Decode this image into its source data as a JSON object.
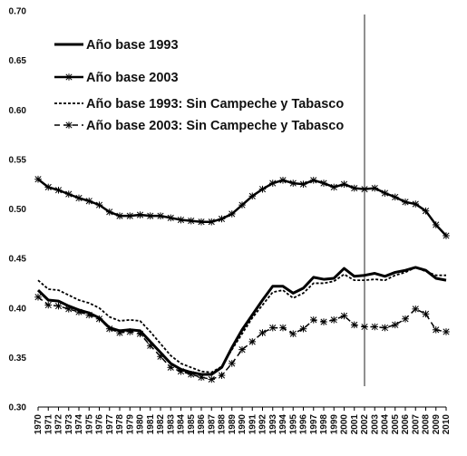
{
  "chart_data": {
    "type": "line",
    "title": "",
    "xlabel": "",
    "ylabel": "",
    "ylim": [
      0.3,
      0.7
    ],
    "yticks": [
      "0.30",
      "0.35",
      "0.40",
      "0.45",
      "0.50",
      "0.55",
      "0.60",
      "0.65",
      "0.70"
    ],
    "grid": false,
    "legend_position": "top-left",
    "reference_line_x": 2002,
    "x": [
      1970,
      1971,
      1972,
      1973,
      1974,
      1975,
      1976,
      1977,
      1978,
      1979,
      1980,
      1981,
      1982,
      1983,
      1984,
      1985,
      1986,
      1987,
      1988,
      1989,
      1990,
      1991,
      1992,
      1993,
      1994,
      1995,
      1996,
      1997,
      1998,
      1999,
      2000,
      2001,
      2002,
      2003,
      2004,
      2005,
      2006,
      2007,
      2008,
      2009,
      2010
    ],
    "x_labels": [
      "1970",
      "1971",
      "1972",
      "1973",
      "1974",
      "1975",
      "1976",
      "1977",
      "1978",
      "1979",
      "1980",
      "1981",
      "1982",
      "1983",
      "1984",
      "1985",
      "1986",
      "1987",
      "1988",
      "1989",
      "1990",
      "1991",
      "1992",
      "1993",
      "1994",
      "1995",
      "1996",
      "1997",
      "1998",
      "1999",
      "2000",
      "2001",
      "2002",
      "2003",
      "2004",
      "2005",
      "2006",
      "2007",
      "2008",
      "2009",
      "2010"
    ],
    "series": [
      {
        "name": "Año base 1993",
        "style": "solid",
        "color": "#000000",
        "values": [
          0.418,
          0.408,
          0.407,
          0.402,
          0.398,
          0.395,
          0.39,
          0.38,
          0.377,
          0.378,
          0.377,
          0.366,
          0.355,
          0.344,
          0.338,
          0.335,
          0.333,
          0.333,
          0.34,
          0.36,
          0.378,
          0.393,
          0.408,
          0.422,
          0.422,
          0.415,
          0.42,
          0.431,
          0.429,
          0.43,
          0.44,
          0.432,
          0.433,
          0.435,
          0.432,
          0.436,
          0.438,
          0.441,
          0.438,
          0.43,
          0.428
        ]
      },
      {
        "name": "Año base 2003",
        "style": "solid-markers",
        "color": "#000000",
        "values": [
          0.53,
          0.522,
          0.519,
          0.515,
          0.511,
          0.508,
          0.504,
          0.497,
          0.493,
          0.493,
          0.494,
          0.493,
          0.493,
          0.491,
          0.489,
          0.488,
          0.487,
          0.487,
          0.49,
          0.495,
          0.504,
          0.513,
          0.52,
          0.526,
          0.529,
          0.526,
          0.525,
          0.529,
          0.526,
          0.522,
          0.525,
          0.521,
          0.52,
          0.521,
          0.516,
          0.512,
          0.507,
          0.505,
          0.498,
          0.484,
          0.473
        ]
      },
      {
        "name": "Año base 1993: Sin Campeche y Tabasco",
        "style": "dotted",
        "color": "#000000",
        "values": [
          0.428,
          0.419,
          0.418,
          0.413,
          0.408,
          0.405,
          0.4,
          0.391,
          0.387,
          0.388,
          0.387,
          0.376,
          0.364,
          0.352,
          0.344,
          0.34,
          0.336,
          0.335,
          0.341,
          0.358,
          0.374,
          0.39,
          0.403,
          0.416,
          0.418,
          0.41,
          0.415,
          0.425,
          0.425,
          0.427,
          0.434,
          0.428,
          0.428,
          0.429,
          0.428,
          0.433,
          0.436,
          0.441,
          0.437,
          0.433,
          0.433
        ]
      },
      {
        "name": "Año base 2003: Sin Campeche y Tabasco",
        "style": "dashed-markers",
        "color": "#000000",
        "values": [
          0.411,
          0.403,
          0.402,
          0.399,
          0.396,
          0.393,
          0.389,
          0.379,
          0.375,
          0.376,
          0.374,
          0.362,
          0.351,
          0.34,
          0.336,
          0.333,
          0.33,
          0.328,
          0.332,
          0.344,
          0.358,
          0.366,
          0.375,
          0.38,
          0.38,
          0.374,
          0.379,
          0.388,
          0.386,
          0.388,
          0.392,
          0.383,
          0.381,
          0.381,
          0.38,
          0.383,
          0.389,
          0.399,
          0.394,
          0.378,
          0.376
        ]
      }
    ]
  }
}
